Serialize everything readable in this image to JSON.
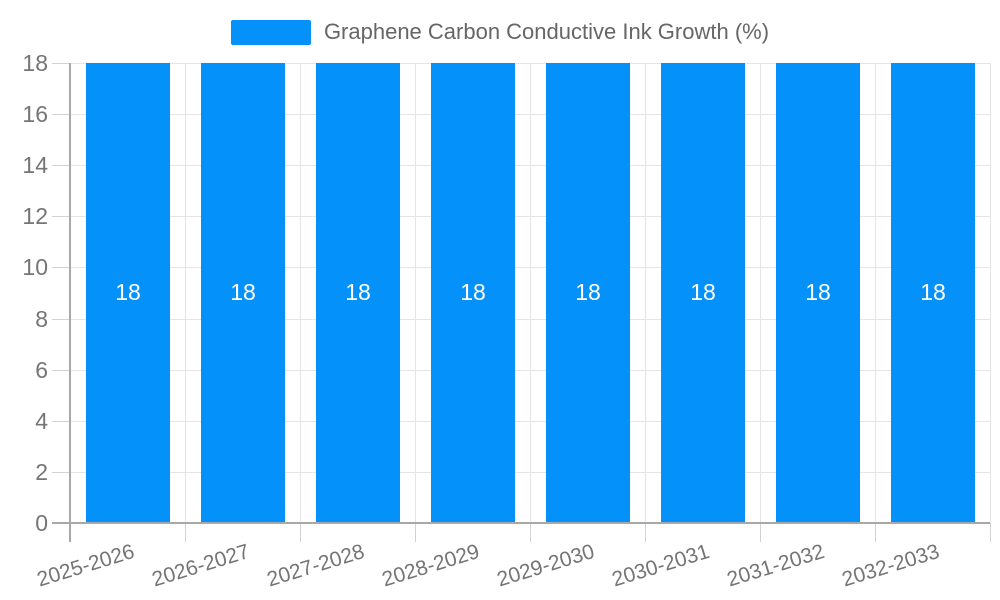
{
  "legend": {
    "label": "Graphene Carbon Conductive Ink Growth (%)"
  },
  "chart_data": {
    "type": "bar",
    "title": "Graphene Carbon Conductive Ink Growth (%)",
    "categories": [
      "2025-2026",
      "2026-2027",
      "2027-2028",
      "2028-2029",
      "2029-2030",
      "2030-2031",
      "2031-2032",
      "2032-2033"
    ],
    "series": [
      {
        "name": "Graphene Carbon Conductive Ink Growth (%)",
        "values": [
          18,
          18,
          18,
          18,
          18,
          18,
          18,
          18
        ]
      }
    ],
    "bar_value_labels": [
      "18",
      "18",
      "18",
      "18",
      "18",
      "18",
      "18",
      "18"
    ],
    "xlabel": "",
    "ylabel": "",
    "ylim": [
      0,
      18
    ],
    "yticks": [
      0,
      2,
      4,
      6,
      8,
      10,
      12,
      14,
      16,
      18
    ],
    "grid": "both",
    "legend_position": "top-center",
    "x_label_rotation_deg": -17
  },
  "colors": {
    "bar": "#0591fa",
    "grid": "#e5e5e5",
    "tick": "#d2d2d2",
    "axis": "#a8a8a8",
    "tick_label": "#757575",
    "legend_text": "#666666",
    "bar_label": "#ffffff",
    "background": "#ffffff"
  }
}
